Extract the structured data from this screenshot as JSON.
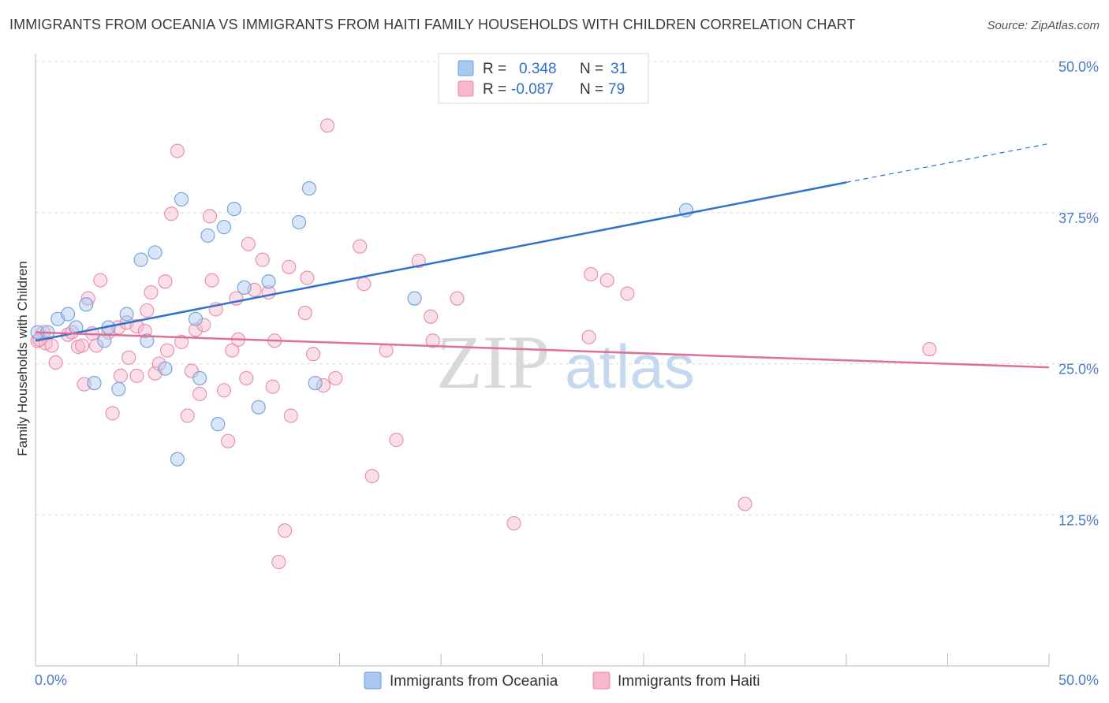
{
  "title": "IMMIGRANTS FROM OCEANIA VS IMMIGRANTS FROM HAITI FAMILY HOUSEHOLDS WITH CHILDREN CORRELATION CHART",
  "source": "Source: ZipAtlas.com",
  "watermark": {
    "zip": "ZIP",
    "atlas": "atlas"
  },
  "legend": {
    "r_label": "R =",
    "n_label": "N =",
    "rows": [
      {
        "r": "0.348",
        "n": "31"
      },
      {
        "r": "-0.087",
        "n": "79"
      }
    ]
  },
  "bottom_legend": [
    "Immigrants from Oceania",
    "Immigrants from Haiti"
  ],
  "colors": {
    "oceania_fill": "#a8c8f0",
    "oceania_stroke": "#6f9fdc",
    "oceania_line": "#2f72cf",
    "haiti_fill": "#f7b8cc",
    "haiti_stroke": "#e88aa9",
    "haiti_line": "#e06f98",
    "tick_text": "#4a7ec4"
  },
  "chart_data": {
    "type": "scatter",
    "xlabel": "",
    "ylabel": "Family Households with Children",
    "xlim": [
      0,
      50
    ],
    "ylim": [
      0,
      50
    ],
    "x_tick_labels": [
      "0.0%",
      "50.0%"
    ],
    "y_ticks": [
      12.5,
      25.0,
      37.5,
      50.0
    ],
    "y_tick_labels": [
      "12.5%",
      "25.0%",
      "37.5%",
      "50.0%"
    ],
    "grid": true,
    "legend_position": "top-center",
    "series": [
      {
        "name": "Immigrants from Oceania",
        "r": 0.348,
        "n": 31,
        "trend": {
          "x0": 0,
          "y0": 26.9,
          "x1": 40,
          "y1": 40.0,
          "dashed_to_x": 50,
          "dashed_to_y": 43.2
        },
        "points": [
          [
            0.1,
            27.6
          ],
          [
            0.6,
            27.6
          ],
          [
            1.1,
            28.7
          ],
          [
            1.6,
            29.1
          ],
          [
            2.0,
            28.0
          ],
          [
            2.5,
            29.9
          ],
          [
            2.9,
            23.4
          ],
          [
            3.4,
            26.9
          ],
          [
            3.6,
            28.0
          ],
          [
            4.1,
            22.9
          ],
          [
            4.5,
            29.1
          ],
          [
            5.2,
            33.6
          ],
          [
            5.5,
            26.9
          ],
          [
            5.9,
            34.2
          ],
          [
            6.4,
            24.6
          ],
          [
            7.0,
            17.1
          ],
          [
            7.2,
            38.6
          ],
          [
            7.9,
            28.7
          ],
          [
            8.1,
            23.8
          ],
          [
            8.5,
            35.6
          ],
          [
            9.0,
            20.0
          ],
          [
            9.3,
            36.3
          ],
          [
            9.8,
            37.8
          ],
          [
            10.3,
            31.3
          ],
          [
            11.0,
            21.4
          ],
          [
            11.5,
            31.8
          ],
          [
            13.0,
            36.7
          ],
          [
            13.5,
            39.5
          ],
          [
            13.8,
            23.4
          ],
          [
            18.7,
            30.4
          ],
          [
            32.1,
            37.7
          ]
        ]
      },
      {
        "name": "Immigrants from Haiti",
        "r": -0.087,
        "n": 79,
        "trend": {
          "x0": 0,
          "y0": 27.6,
          "x1": 50,
          "y1": 24.7
        },
        "points": [
          [
            0.1,
            26.9
          ],
          [
            0.4,
            27.6
          ],
          [
            0.5,
            26.7
          ],
          [
            0.8,
            26.5
          ],
          [
            1.0,
            25.1
          ],
          [
            1.6,
            27.4
          ],
          [
            1.8,
            27.6
          ],
          [
            2.1,
            26.4
          ],
          [
            2.3,
            26.5
          ],
          [
            2.4,
            23.3
          ],
          [
            2.6,
            30.4
          ],
          [
            2.8,
            27.5
          ],
          [
            3.0,
            26.5
          ],
          [
            3.2,
            31.9
          ],
          [
            3.6,
            27.6
          ],
          [
            3.8,
            20.9
          ],
          [
            4.1,
            28.0
          ],
          [
            4.2,
            24.0
          ],
          [
            4.5,
            28.4
          ],
          [
            4.6,
            25.5
          ],
          [
            5.0,
            28.1
          ],
          [
            5.0,
            24.0
          ],
          [
            5.4,
            27.7
          ],
          [
            5.5,
            29.4
          ],
          [
            5.7,
            30.9
          ],
          [
            5.9,
            24.2
          ],
          [
            6.1,
            25.0
          ],
          [
            6.4,
            31.8
          ],
          [
            6.5,
            26.1
          ],
          [
            6.7,
            37.4
          ],
          [
            7.0,
            42.6
          ],
          [
            7.2,
            26.8
          ],
          [
            7.5,
            20.7
          ],
          [
            7.7,
            24.4
          ],
          [
            7.9,
            27.8
          ],
          [
            8.1,
            22.5
          ],
          [
            8.3,
            28.2
          ],
          [
            8.6,
            37.2
          ],
          [
            8.7,
            31.9
          ],
          [
            8.9,
            29.5
          ],
          [
            9.3,
            22.8
          ],
          [
            9.5,
            18.6
          ],
          [
            9.7,
            26.1
          ],
          [
            9.9,
            30.4
          ],
          [
            10.0,
            27.0
          ],
          [
            10.4,
            23.8
          ],
          [
            10.5,
            34.9
          ],
          [
            10.8,
            31.1
          ],
          [
            11.2,
            33.6
          ],
          [
            11.5,
            30.9
          ],
          [
            11.7,
            23.1
          ],
          [
            11.8,
            26.9
          ],
          [
            12.0,
            8.6
          ],
          [
            12.3,
            11.2
          ],
          [
            12.5,
            33.0
          ],
          [
            12.6,
            20.7
          ],
          [
            13.3,
            29.2
          ],
          [
            13.4,
            32.1
          ],
          [
            13.7,
            25.8
          ],
          [
            14.2,
            23.2
          ],
          [
            14.4,
            44.7
          ],
          [
            14.8,
            23.8
          ],
          [
            16.0,
            34.7
          ],
          [
            16.2,
            31.6
          ],
          [
            16.6,
            15.7
          ],
          [
            17.3,
            26.1
          ],
          [
            17.8,
            18.7
          ],
          [
            18.9,
            33.5
          ],
          [
            19.5,
            28.9
          ],
          [
            19.6,
            26.9
          ],
          [
            20.8,
            30.4
          ],
          [
            23.6,
            11.8
          ],
          [
            27.3,
            27.2
          ],
          [
            27.4,
            32.4
          ],
          [
            28.2,
            31.9
          ],
          [
            29.2,
            30.8
          ],
          [
            35.0,
            13.4
          ],
          [
            44.1,
            26.2
          ],
          [
            0.2,
            27.0
          ]
        ]
      }
    ]
  }
}
